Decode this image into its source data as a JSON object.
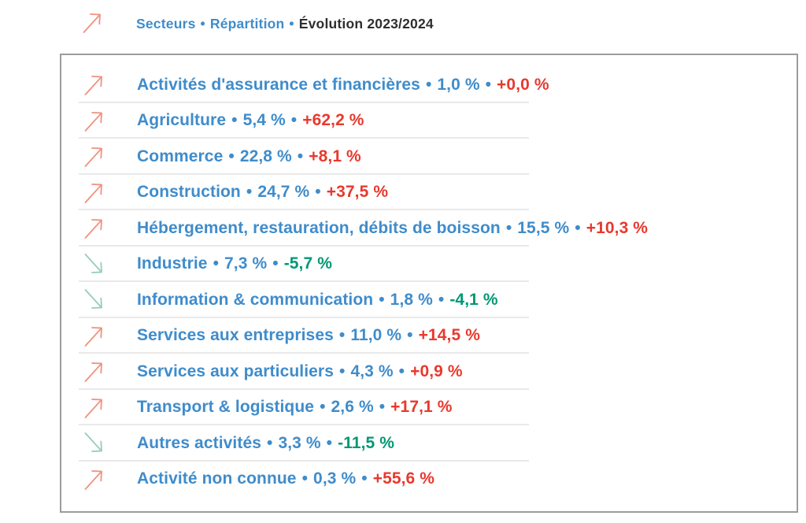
{
  "header": {
    "separator": "•",
    "items": [
      {
        "label": "Secteurs"
      },
      {
        "label": "Répartition"
      },
      {
        "label": "Évolution 2023/2024"
      }
    ]
  },
  "list": {
    "separator": "•",
    "rows": [
      {
        "name": "Activités d'assurance et financières",
        "share": "1,0 %",
        "evolution": "+0,0 %",
        "trend": "up"
      },
      {
        "name": "Agriculture",
        "share": "5,4 %",
        "evolution": "+62,2 %",
        "trend": "up"
      },
      {
        "name": "Commerce",
        "share": "22,8 %",
        "evolution": "+8,1 %",
        "trend": "up"
      },
      {
        "name": "Construction",
        "share": "24,7 %",
        "evolution": "+37,5 %",
        "trend": "up"
      },
      {
        "name": "Hébergement, restauration, débits de boisson",
        "share": "15,5 %",
        "evolution": "+10,3 %",
        "trend": "up"
      },
      {
        "name": "Industrie",
        "share": "7,3 %",
        "evolution": "-5,7 %",
        "trend": "down"
      },
      {
        "name": "Information & communication",
        "share": "1,8 %",
        "evolution": "-4,1 %",
        "trend": "down"
      },
      {
        "name": "Services aux entreprises",
        "share": "11,0 %",
        "evolution": "+14,5 %",
        "trend": "up"
      },
      {
        "name": "Services aux particuliers",
        "share": "4,3 %",
        "evolution": "+0,9 %",
        "trend": "up"
      },
      {
        "name": "Transport & logistique",
        "share": "2,6 %",
        "evolution": "+17,1 %",
        "trend": "up"
      },
      {
        "name": "Autres activités",
        "share": "3,3 %",
        "evolution": "-11,5 %",
        "trend": "down"
      },
      {
        "name": "Activité non connue",
        "share": "0,3 %",
        "evolution": "+55,6 %",
        "trend": "up"
      }
    ]
  },
  "colors": {
    "sector_blue": "#3F8CCB",
    "positive_red": "#E8392D",
    "negative_green": "#009874",
    "arrow_up_salmon": "#F0917F",
    "arrow_down_teal": "#97CBBA",
    "header_dark": "#2E2E2E",
    "divider_gray": "#E9E9E9",
    "panel_border_gray": "#9C9C9C"
  },
  "chart_data": {
    "type": "table",
    "title": "Secteurs • Répartition • Évolution 2023/2024",
    "columns": [
      "Secteur",
      "Répartition (%)",
      "Évolution 2023/2024 (%)"
    ],
    "rows": [
      [
        "Activités d'assurance et financières",
        1.0,
        0.0
      ],
      [
        "Agriculture",
        5.4,
        62.2
      ],
      [
        "Commerce",
        22.8,
        8.1
      ],
      [
        "Construction",
        24.7,
        37.5
      ],
      [
        "Hébergement, restauration, débits de boisson",
        15.5,
        10.3
      ],
      [
        "Industrie",
        7.3,
        -5.7
      ],
      [
        "Information & communication",
        1.8,
        -4.1
      ],
      [
        "Services aux entreprises",
        11.0,
        14.5
      ],
      [
        "Services aux particuliers",
        4.3,
        0.9
      ],
      [
        "Transport & logistique",
        2.6,
        17.1
      ],
      [
        "Autres activités",
        3.3,
        -11.5
      ],
      [
        "Activité non connue",
        0.3,
        55.6
      ]
    ]
  }
}
